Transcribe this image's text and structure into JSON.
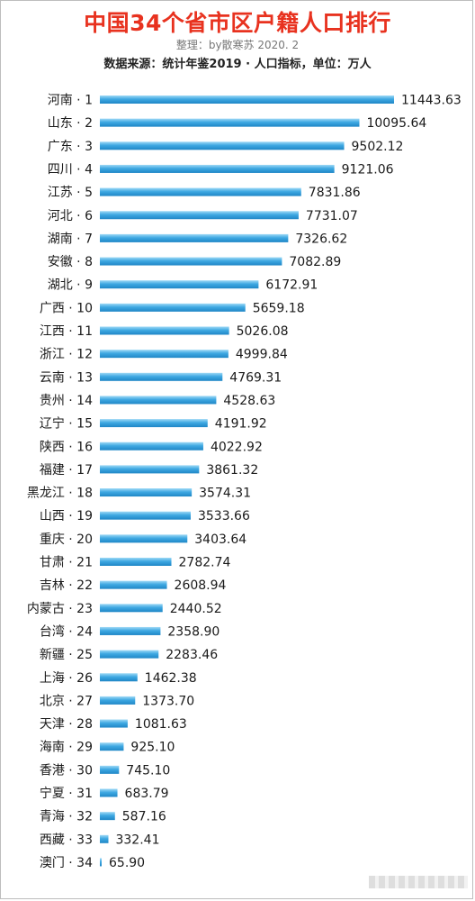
{
  "header": {
    "title": "中国34个省市区户籍人口排行",
    "subtitle": "整理：by散寒苏 2020. 2",
    "source": "数据来源：统计年鉴2019 · 人口指标，单位：万人"
  },
  "colors": {
    "title": "#e8321f",
    "bar_light": "#8fd1f3",
    "bar_mid": "#3aa5e0",
    "bar_dark": "#1f86c6"
  },
  "chart_data": {
    "type": "bar",
    "orientation": "horizontal",
    "categories": [
      "河南 · 1",
      "山东 · 2",
      "广东 · 3",
      "四川 · 4",
      "江苏 · 5",
      "河北 · 6",
      "湖南 · 7",
      "安徽 · 8",
      "湖北 · 9",
      "广西 · 10",
      "江西 · 11",
      "浙江 · 12",
      "云南 · 13",
      "贵州 · 14",
      "辽宁 · 15",
      "陕西 · 16",
      "福建 · 17",
      "黑龙江 · 18",
      "山西 · 19",
      "重庆 · 20",
      "甘肃 · 21",
      "吉林 · 22",
      "内蒙古 · 23",
      "台湾 · 24",
      "新疆 · 25",
      "上海 · 26",
      "北京 · 27",
      "天津 · 28",
      "海南 · 29",
      "香港 · 30",
      "宁夏 · 31",
      "青海 · 32",
      "西藏 · 33",
      "澳门 · 34"
    ],
    "values": [
      11443.63,
      10095.64,
      9502.12,
      9121.06,
      7831.86,
      7731.07,
      7326.62,
      7082.89,
      6172.91,
      5659.18,
      5026.08,
      4999.84,
      4769.31,
      4528.63,
      4191.92,
      4022.92,
      3861.32,
      3574.31,
      3533.66,
      3403.64,
      2782.74,
      2608.94,
      2440.52,
      2358.9,
      2283.46,
      1462.38,
      1373.7,
      1081.63,
      925.1,
      745.1,
      683.79,
      587.16,
      332.41,
      65.9
    ],
    "value_labels": [
      "11443.63",
      "10095.64",
      "9502.12",
      "9121.06",
      "7831.86",
      "7731.07",
      "7326.62",
      "7082.89",
      "6172.91",
      "5659.18",
      "5026.08",
      "4999.84",
      "4769.31",
      "4528.63",
      "4191.92",
      "4022.92",
      "3861.32",
      "3574.31",
      "3533.66",
      "3403.64",
      "2782.74",
      "2608.94",
      "2440.52",
      "2358.90",
      "2283.46",
      "1462.38",
      "1373.70",
      "1081.63",
      "925.10",
      "745.10",
      "683.79",
      "587.16",
      "332.41",
      "65.90"
    ],
    "xlim": [
      0,
      11443.63
    ],
    "grid": false,
    "legend": "none"
  }
}
